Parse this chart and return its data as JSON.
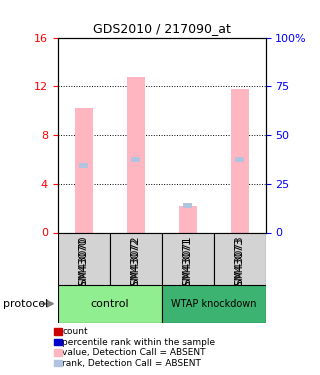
{
  "title": "GDS2010 / 217090_at",
  "samples": [
    "GSM43070",
    "GSM43072",
    "GSM43071",
    "GSM43073"
  ],
  "groups": [
    "control",
    "control",
    "WTAP knockdown",
    "WTAP knockdown"
  ],
  "group_labels": [
    "control",
    "WTAP knockdown"
  ],
  "group_colors": [
    "#90EE90",
    "#3CB371"
  ],
  "bar_values": [
    10.2,
    12.8,
    2.2,
    11.8
  ],
  "rank_values": [
    5.5,
    6.0,
    2.2,
    6.0
  ],
  "bar_color_absent": "#FFB6C1",
  "rank_color_absent": "#B0C4DE",
  "left_yticks": [
    0,
    4,
    8,
    12,
    16
  ],
  "right_yticks": [
    0,
    25,
    50,
    75,
    100
  ],
  "right_yticklabels": [
    "0",
    "25",
    "50",
    "75",
    "100%"
  ],
  "ylim_left": [
    0,
    16
  ],
  "ylim_right": [
    0,
    100
  ],
  "legend_items": [
    {
      "label": "count",
      "color": "#CC0000",
      "marker": "s"
    },
    {
      "label": "percentile rank within the sample",
      "color": "#0000CC",
      "marker": "s"
    },
    {
      "label": "value, Detection Call = ABSENT",
      "color": "#FFB6C1",
      "marker": "s"
    },
    {
      "label": "rank, Detection Call = ABSENT",
      "color": "#B0C4DE",
      "marker": "s"
    }
  ],
  "protocol_label": "protocol",
  "xlabel_color": "red",
  "ylabel_left_color": "red",
  "ylabel_right_color": "blue"
}
